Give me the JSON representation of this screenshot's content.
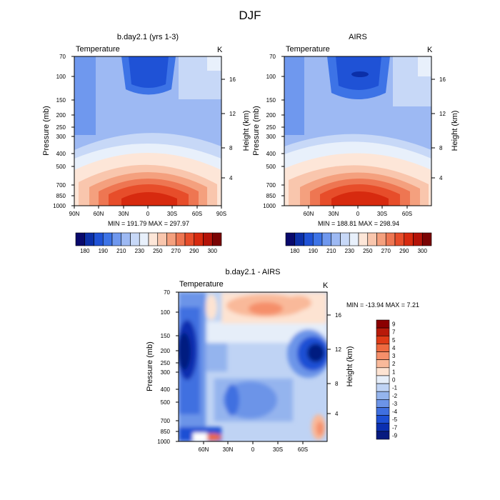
{
  "figure": {
    "title": "DJF"
  },
  "colorbar_levels_abs": [
    "180",
    "190",
    "210",
    "230",
    "250",
    "270",
    "290",
    "300"
  ],
  "colorbar_levels_diff": [
    "9",
    "7",
    "5",
    "4",
    "3",
    "2",
    "1",
    "0",
    "-1",
    "-2",
    "-3",
    "-4",
    "-5",
    "-7",
    "-9"
  ],
  "colors": {
    "abs": [
      "#08086b",
      "#0b2fa8",
      "#1f52d6",
      "#3d73e6",
      "#6f98ee",
      "#9db9f3",
      "#c7d8f7",
      "#e8f0fb",
      "#fde6d8",
      "#f9c6ad",
      "#f4a07e",
      "#ee7652",
      "#e74d2a",
      "#d72a0f",
      "#b41308",
      "#7a0303"
    ],
    "diff": [
      "#8b0000",
      "#b81a0a",
      "#df3b17",
      "#ee6a40",
      "#f58f6a",
      "#f9b99a",
      "#fde3d2",
      "#e6eef9",
      "#bfd3f4",
      "#94b4ee",
      "#6c94e8",
      "#3f6fe0",
      "#1d4fd4",
      "#0a2fb0",
      "#061a80"
    ]
  },
  "chart_data": [
    {
      "type": "heatmap",
      "title": "b.day2.1 (yrs 1-3)",
      "left_label": "Temperature",
      "right_label": "K",
      "ylabel": "Pressure (mb)",
      "ylabel_right": "Height (km)",
      "x_ticks": [
        "90N",
        "60N",
        "30N",
        "0",
        "30S",
        "60S",
        "90S"
      ],
      "y_ticks": [
        "70",
        "100",
        "150",
        "200",
        "250",
        "300",
        "400",
        "500",
        "700",
        "850",
        "1000"
      ],
      "y_ticks_right": [
        "16",
        "12",
        "8",
        "4"
      ],
      "stats": "MIN = 191.79  MAX = 297.97",
      "min": 191.79,
      "max": 297.97,
      "colorbar_levels": [
        "180",
        "190",
        "210",
        "230",
        "250",
        "270",
        "290",
        "300"
      ]
    },
    {
      "type": "heatmap",
      "title": "AIRS",
      "left_label": "Temperature",
      "right_label": "K",
      "ylabel": "Pressure (mb)",
      "ylabel_right": "Height (km)",
      "x_ticks": [
        "60N",
        "30N",
        "0",
        "30S",
        "60S"
      ],
      "y_ticks": [
        "70",
        "100",
        "150",
        "200",
        "250",
        "300",
        "400",
        "500",
        "700",
        "850",
        "1000"
      ],
      "y_ticks_right": [
        "16",
        "12",
        "8",
        "4"
      ],
      "stats": "MIN = 188.81  MAX = 298.94",
      "min": 188.81,
      "max": 298.94,
      "colorbar_levels": [
        "180",
        "190",
        "210",
        "230",
        "250",
        "270",
        "290",
        "300"
      ]
    },
    {
      "type": "heatmap",
      "title": "b.day2.1 - AIRS",
      "left_label": "Temperature",
      "right_label": "K",
      "ylabel": "Pressure (mb)",
      "ylabel_right": "Height (km)",
      "x_ticks": [
        "60N",
        "30N",
        "0",
        "30S",
        "60S"
      ],
      "y_ticks": [
        "70",
        "100",
        "150",
        "200",
        "250",
        "300",
        "400",
        "500",
        "700",
        "850",
        "1000"
      ],
      "y_ticks_right": [
        "16",
        "12",
        "8",
        "4"
      ],
      "stats": "MIN = -13.94  MAX =   7.21",
      "min": -13.94,
      "max": 7.21,
      "colorbar_levels": [
        "9",
        "7",
        "5",
        "4",
        "3",
        "2",
        "1",
        "0",
        "-1",
        "-2",
        "-3",
        "-4",
        "-5",
        "-7",
        "-9"
      ]
    }
  ]
}
